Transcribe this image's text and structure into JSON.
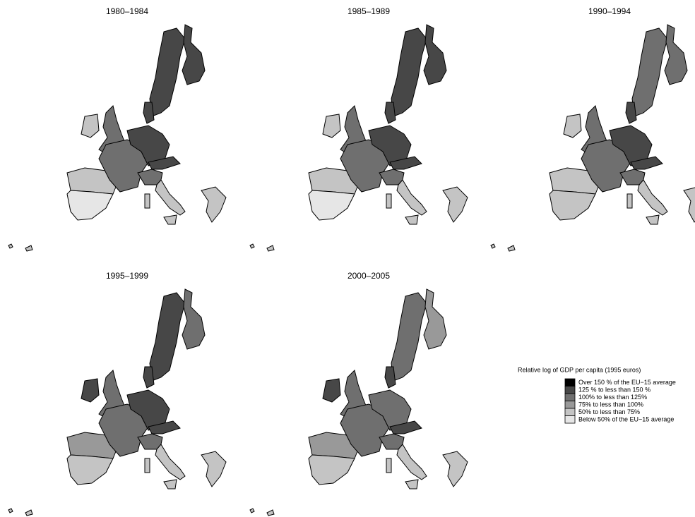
{
  "panels": [
    {
      "title": "1980–1984"
    },
    {
      "title": "1985–1989"
    },
    {
      "title": "1990–1994"
    },
    {
      "title": "1995–1999"
    },
    {
      "title": "2000–2005"
    }
  ],
  "legend": {
    "title": "Relative log of GDP per capita (1995 euros)",
    "items": [
      {
        "label": "Over 150 % of the EU−15 average",
        "color": "#000000"
      },
      {
        "label": "125 % to less than 150 %",
        "color": "#474747"
      },
      {
        "label": "100% to less than 125%",
        "color": "#6f6f6f"
      },
      {
        "label": "75% to less than 100%",
        "color": "#999999"
      },
      {
        "label": "50% to less than 75%",
        "color": "#c4c4c4"
      },
      {
        "label": "Below 50% of the EU−15 average",
        "color": "#e6e6e6"
      }
    ]
  }
}
